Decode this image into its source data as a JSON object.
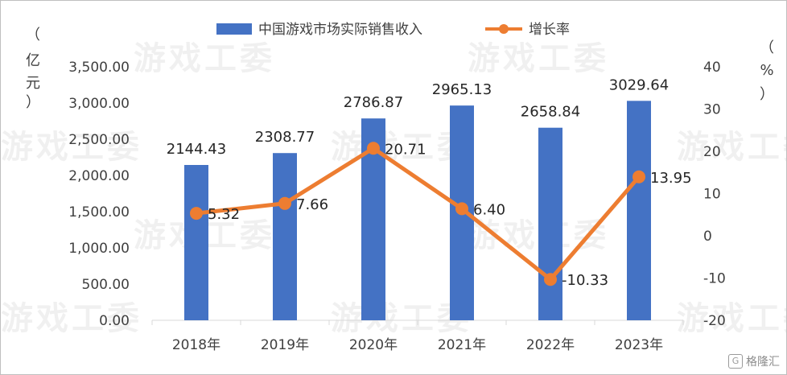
{
  "chart_data": {
    "type": "bar+line",
    "categories": [
      "2018年",
      "2019年",
      "2020年",
      "2021年",
      "2022年",
      "2023年"
    ],
    "series": [
      {
        "name": "中国游戏市场实际销售收入",
        "type": "bar",
        "axis": "left",
        "values": [
          2144.43,
          2308.77,
          2786.87,
          2965.13,
          2658.84,
          3029.64
        ],
        "labels": [
          "2144.43",
          "2308.77",
          "2786.87",
          "2965.13",
          "2658.84",
          "3029.64"
        ]
      },
      {
        "name": "增长率",
        "type": "line",
        "axis": "right",
        "values": [
          5.32,
          7.66,
          20.71,
          6.4,
          -10.33,
          13.95
        ],
        "labels": [
          "5.32",
          "7.66",
          "20.71",
          "6.40",
          "-10.33",
          "13.95"
        ]
      }
    ],
    "y_left": {
      "unit": [
        "（",
        "亿",
        "元",
        "）"
      ],
      "range": [
        0,
        3500
      ],
      "ticks": [
        "0.00",
        "500.00",
        "1,000.00",
        "1,500.00",
        "2,000.00",
        "2,500.00",
        "3,000.00",
        "3,500.00"
      ]
    },
    "y_right": {
      "unit": [
        "（",
        "%",
        "）"
      ],
      "range": [
        -20,
        40
      ],
      "ticks": [
        "-20",
        "-10",
        "0",
        "10",
        "20",
        "30",
        "40"
      ]
    },
    "legend_position": "top",
    "grid": false,
    "colors": {
      "bar": "#4472C4",
      "line": "#ED7D31",
      "text": "#404040",
      "axis": "#d9d9d9"
    }
  },
  "watermark": "游戏工委",
  "logo": {
    "mark": "G",
    "text": "格隆汇"
  }
}
